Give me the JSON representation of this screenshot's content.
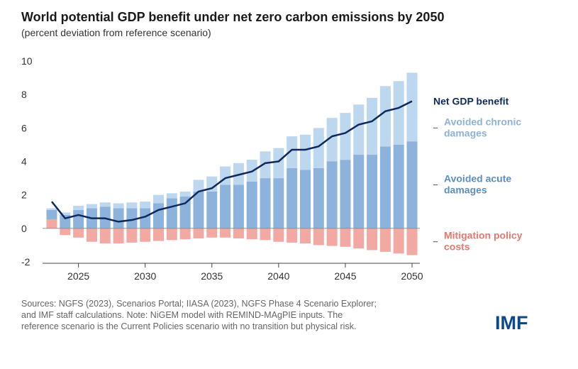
{
  "header": {
    "title": "World potential GDP benefit under net zero carbon emissions by 2050",
    "subtitle": "(percent deviation from reference scenario)"
  },
  "footer": {
    "source_line1": "Sources: NGFS (2023), Scenarios Portal; IIASA (2023), NGFS Phase 4 Scenario Explorer;",
    "source_line2": "and IMF staff calculations. Note: NiGEM model with REMIND-MAgPIE inputs. The",
    "source_line3": "reference scenario is the Current Policies scenario with no transition but physical risk.",
    "logo": "IMF"
  },
  "colors": {
    "chronic": "#bdd7ee",
    "acute": "#8db3dc",
    "mitigation": "#f2a9a3",
    "net_line": "#0e2a5c",
    "net_label": "#0e2a5c",
    "chronic_label": "#8db3dc",
    "acute_label": "#5a8fc6",
    "mitigation_label": "#e8776d"
  },
  "chart_data": {
    "type": "bar",
    "stacked": true,
    "title": "World potential GDP benefit under net zero carbon emissions by 2050",
    "subtitle": "(percent deviation from reference scenario)",
    "x": [
      2023,
      2024,
      2025,
      2026,
      2027,
      2028,
      2029,
      2030,
      2031,
      2032,
      2033,
      2034,
      2035,
      2036,
      2037,
      2038,
      2039,
      2040,
      2041,
      2042,
      2043,
      2044,
      2045,
      2046,
      2047,
      2048,
      2049,
      2050
    ],
    "xticks": [
      "2025",
      "2030",
      "2035",
      "2040",
      "2045",
      "2050"
    ],
    "xtick_values": [
      2025,
      2030,
      2035,
      2040,
      2045,
      2050
    ],
    "yticks": [
      "10",
      "8",
      "6",
      "4",
      "2",
      "0",
      "-2"
    ],
    "ytick_values": [
      10,
      8,
      6,
      4,
      2,
      0,
      -2
    ],
    "ylim": [
      -2,
      10
    ],
    "series": [
      {
        "name": "Avoided acute damages",
        "kind": "bar",
        "values": [
          1.1,
          0.8,
          1.1,
          1.2,
          1.3,
          1.2,
          1.2,
          1.2,
          1.5,
          1.8,
          1.9,
          2.2,
          2.2,
          2.6,
          2.6,
          2.8,
          3.0,
          3.0,
          3.6,
          3.5,
          3.6,
          4.0,
          4.1,
          4.4,
          4.4,
          4.9,
          5.0,
          5.2
        ]
      },
      {
        "name": "Avoided chronic damages",
        "kind": "bar",
        "values": [
          0.1,
          0.15,
          0.25,
          0.25,
          0.25,
          0.3,
          0.35,
          0.4,
          0.5,
          0.3,
          0.3,
          0.7,
          0.9,
          1.1,
          1.3,
          1.3,
          1.6,
          1.8,
          1.9,
          2.1,
          2.4,
          2.6,
          2.8,
          3.0,
          3.4,
          3.6,
          3.8,
          4.1
        ]
      },
      {
        "name": "Mitigation policy costs",
        "kind": "bar",
        "values": [
          0.55,
          -0.4,
          -0.55,
          -0.8,
          -0.9,
          -0.9,
          -0.85,
          -0.8,
          -0.75,
          -0.7,
          -0.65,
          -0.6,
          -0.55,
          -0.55,
          -0.6,
          -0.65,
          -0.7,
          -0.8,
          -0.85,
          -0.9,
          -1.0,
          -1.05,
          -1.1,
          -1.2,
          -1.3,
          -1.4,
          -1.5,
          -1.6
        ]
      },
      {
        "name": "Net GDP benefit",
        "kind": "line",
        "values": [
          1.6,
          0.6,
          0.8,
          0.6,
          0.6,
          0.4,
          0.5,
          0.7,
          1.1,
          1.3,
          1.5,
          2.2,
          2.4,
          3.0,
          3.2,
          3.4,
          3.9,
          4.0,
          4.7,
          4.7,
          4.9,
          5.5,
          5.7,
          6.2,
          6.4,
          7.0,
          7.2,
          7.6
        ]
      }
    ],
    "legend": [
      {
        "label_line1": "Net GDP benefit",
        "label_line2": "",
        "series": "Net GDP benefit",
        "y": 7.6
      },
      {
        "label_line1": "Avoided chronic",
        "label_line2": "damages",
        "series": "Avoided chronic damages",
        "y": 6.0
      },
      {
        "label_line1": "Avoided acute",
        "label_line2": "damages",
        "series": "Avoided acute damages",
        "y": 2.6
      },
      {
        "label_line1": "Mitigation policy",
        "label_line2": "costs",
        "series": "Mitigation policy costs",
        "y": -0.8
      }
    ],
    "legend_placement": "right"
  }
}
